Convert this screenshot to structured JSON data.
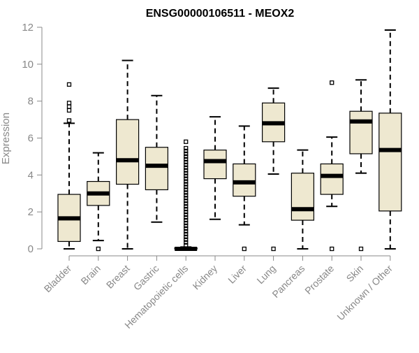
{
  "chart_data": {
    "type": "boxplot",
    "title": "ENSG00000106511 - MEOX2",
    "xlabel": "",
    "ylabel": "Expression",
    "ylim": [
      0,
      12
    ],
    "yticks": [
      0,
      2,
      4,
      6,
      8,
      10,
      12
    ],
    "grid": false,
    "legend": "none",
    "colors": {
      "box_fill": "#EEE8D0",
      "stroke": "#000000",
      "axis": "#888888",
      "title": "#000000"
    },
    "categories": [
      "Bladder",
      "Brain",
      "Breast",
      "Gastric",
      "Hematopoietic cells",
      "Kidney",
      "Liver",
      "Lung",
      "Pancreas",
      "Prostate",
      "Skin",
      "Unknown / Other"
    ],
    "boxes": [
      {
        "min": 0,
        "q1": 0.4,
        "median": 1.65,
        "q3": 2.95,
        "max": 6.8,
        "outliers": [
          6.95,
          7.5,
          7.7,
          7.9,
          8.9
        ]
      },
      {
        "min": 0.45,
        "q1": 2.35,
        "median": 3.0,
        "q3": 3.65,
        "max": 5.2,
        "outliers": [
          0.0
        ]
      },
      {
        "min": 0,
        "q1": 3.5,
        "median": 4.8,
        "q3": 7.0,
        "max": 10.2,
        "outliers": []
      },
      {
        "min": 1.45,
        "q1": 3.2,
        "median": 4.5,
        "q3": 5.5,
        "max": 8.3,
        "outliers": []
      },
      {
        "min": 0,
        "q1": 0,
        "median": 0,
        "q3": 0.05,
        "max": 0.1,
        "outliers": [
          0.2,
          0.35,
          0.5,
          0.65,
          0.8,
          0.95,
          1.1,
          1.25,
          1.4,
          1.55,
          1.7,
          1.85,
          2.0,
          2.15,
          2.3,
          2.45,
          2.6,
          2.75,
          2.9,
          3.05,
          3.2,
          3.35,
          3.5,
          3.65,
          3.8,
          3.95,
          4.1,
          4.25,
          4.4,
          4.55,
          4.7,
          4.85,
          5.0,
          5.15,
          5.3,
          5.45,
          5.8
        ]
      },
      {
        "min": 1.6,
        "q1": 3.8,
        "median": 4.75,
        "q3": 5.35,
        "max": 7.15,
        "outliers": []
      },
      {
        "min": 1.3,
        "q1": 2.85,
        "median": 3.6,
        "q3": 4.6,
        "max": 6.65,
        "outliers": [
          0.0
        ]
      },
      {
        "min": 4.05,
        "q1": 5.8,
        "median": 6.8,
        "q3": 7.9,
        "max": 8.7,
        "outliers": [
          0.0
        ]
      },
      {
        "min": 0,
        "q1": 1.55,
        "median": 2.15,
        "q3": 4.1,
        "max": 5.35,
        "outliers": []
      },
      {
        "min": 2.3,
        "q1": 2.95,
        "median": 3.95,
        "q3": 4.6,
        "max": 6.05,
        "outliers": [
          0.0,
          9.0
        ]
      },
      {
        "min": 4.1,
        "q1": 5.15,
        "median": 6.9,
        "q3": 7.45,
        "max": 9.15,
        "outliers": [
          0.0
        ]
      },
      {
        "min": 0,
        "q1": 2.05,
        "median": 5.35,
        "q3": 7.35,
        "max": 11.85,
        "outliers": []
      }
    ]
  }
}
